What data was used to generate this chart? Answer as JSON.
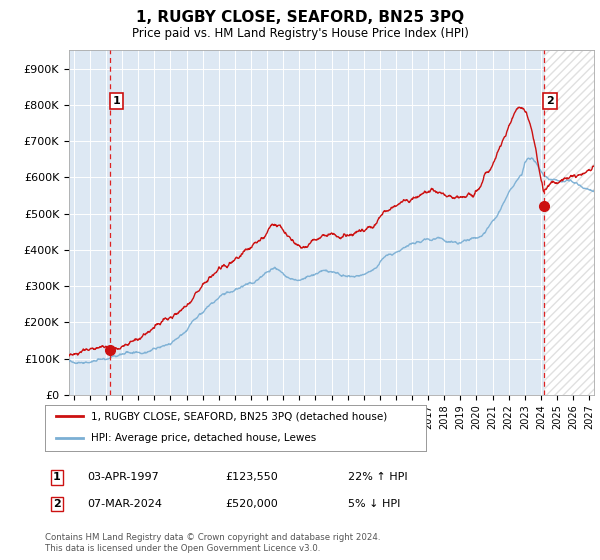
{
  "title": "1, RUGBY CLOSE, SEAFORD, BN25 3PQ",
  "subtitle": "Price paid vs. HM Land Registry's House Price Index (HPI)",
  "legend_entry1": "1, RUGBY CLOSE, SEAFORD, BN25 3PQ (detached house)",
  "legend_entry2": "HPI: Average price, detached house, Lewes",
  "sale1_date": "03-APR-1997",
  "sale1_price": 123550,
  "sale1_hpi_text": "22% ↑ HPI",
  "sale2_date": "07-MAR-2024",
  "sale2_price": 520000,
  "sale2_hpi_text": "5% ↓ HPI",
  "footer": "Contains HM Land Registry data © Crown copyright and database right 2024.\nThis data is licensed under the Open Government Licence v3.0.",
  "ylim": [
    0,
    950000
  ],
  "yticks": [
    0,
    100000,
    200000,
    300000,
    400000,
    500000,
    600000,
    700000,
    800000,
    900000
  ],
  "ytick_labels": [
    "£0",
    "£100K",
    "£200K",
    "£300K",
    "£400K",
    "£500K",
    "£600K",
    "£700K",
    "£800K",
    "£900K"
  ],
  "hpi_color": "#7bafd4",
  "price_color": "#cc1111",
  "bg_color": "#dde8f3",
  "sale_marker_color": "#cc1111",
  "dashed_line_color": "#dd2222",
  "xlim_left": 1994.7,
  "xlim_right": 2027.3,
  "sale1_x": 1997.25,
  "sale2_x": 2024.17,
  "hatch_start": 2024.17,
  "xtick_years": [
    1995,
    1996,
    1997,
    1998,
    1999,
    2000,
    2001,
    2002,
    2003,
    2004,
    2005,
    2006,
    2007,
    2008,
    2009,
    2010,
    2011,
    2012,
    2013,
    2014,
    2015,
    2016,
    2017,
    2018,
    2019,
    2020,
    2021,
    2022,
    2023,
    2024,
    2025,
    2026,
    2027
  ]
}
